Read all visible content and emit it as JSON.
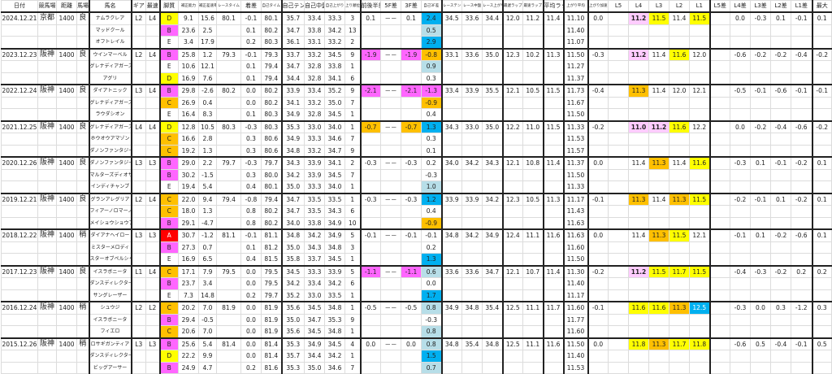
{
  "palette": {
    "Y": "#ffff00",
    "O": "#ffc000",
    "M": "#ff66ff",
    "P": "#ffccff",
    "B": "#00b0f0",
    "L": "#b7dee8",
    "R": "#ff0000"
  },
  "style_colors": {
    "A": "R",
    "B": "M",
    "C": "O",
    "D": "Y",
    "E": ""
  },
  "headers": [
    "日付",
    "競馬場",
    "距離",
    "馬場",
    "馬名",
    "ギア",
    "最速",
    "脚質",
    "補正能力",
    "補正差速率",
    "レースタイム",
    "着差",
    "自己タイム",
    "自己テン",
    "自己中盤",
    "自己上がり",
    "上り順位",
    "前後半差",
    "5F差",
    "3F差",
    "自己3F差",
    "レーステン",
    "レース中盤",
    "レース上がり",
    "最遅ラップ",
    "最速ラップ",
    "平均ラップ",
    "上がり平均",
    "上がり加速",
    "L5",
    "L4",
    "L3",
    "L2",
    "L1",
    "L5差",
    "L4差",
    "L3差",
    "L2差",
    "L1差",
    "最大"
  ],
  "races": [
    {
      "date": "2024.12.21",
      "course": "京都",
      "distance": "1400",
      "going": "良",
      "gear": "L2",
      "fastest": "L4",
      "race_time": "80.1",
      "fb_diff": "0.1",
      "fb_color": "",
      "diff5f": "－－",
      "diff3f": "0.1",
      "race_ten": "34.5",
      "race_mid": "33.6",
      "race_agari": "34.4",
      "slowest_lap": "12.0",
      "fastest_lap": "11.2",
      "avg_lap": "11.4",
      "agari_accel": "0.0",
      "laps": [
        "",
        "11.2",
        "11.5",
        "11.4",
        "11.5"
      ],
      "lap_colors": [
        "",
        "P",
        "Y",
        "",
        "Y"
      ],
      "lap_diffs": [
        "",
        "0.0",
        "-0.3",
        "0.1",
        "-0.1"
      ],
      "max": "0.1",
      "horses": [
        {
          "name": "ナムラクレア",
          "style": "D",
          "adj1": "9.1",
          "adj2": "15.6",
          "margin": "-0.1",
          "time": "80.1",
          "ten": "35.7",
          "mid": "33.4",
          "agari": "33.3",
          "rank": "3",
          "self3f": "2.4",
          "self3f_color": "B",
          "agari_avg": "11.10"
        },
        {
          "name": "マッドクール",
          "style": "B",
          "adj1": "23.6",
          "adj2": "2.5",
          "margin": "0.1",
          "time": "80.2",
          "ten": "34.7",
          "mid": "33.8",
          "agari": "34.2",
          "rank": "13",
          "self3f": "0.5",
          "self3f_color": "L",
          "agari_avg": "11.40"
        },
        {
          "name": "オフトレイル",
          "style": "E",
          "adj1": "3.4",
          "adj2": "17.9",
          "margin": "0.2",
          "time": "80.3",
          "ten": "36.1",
          "mid": "33.1",
          "agari": "33.2",
          "rank": "2",
          "self3f": "2.9",
          "self3f_color": "B",
          "agari_avg": "11.07"
        }
      ]
    },
    {
      "date": "2023.12.23",
      "course": "阪神",
      "distance": "1400",
      "going": "良",
      "gear": "L2",
      "fastest": "L4",
      "race_time": "79.3",
      "fb_diff": "-1.9",
      "fb_color": "M",
      "diff5f": "－－",
      "diff3f": "-1.9",
      "race_ten": "33.1",
      "race_mid": "33.6",
      "race_agari": "35.0",
      "slowest_lap": "12.3",
      "fastest_lap": "10.2",
      "avg_lap": "11.3",
      "agari_accel": "-0.3",
      "laps": [
        "",
        "11.2",
        "11.4",
        "11.6",
        "12.0"
      ],
      "lap_colors": [
        "",
        "P",
        "",
        "Y",
        ""
      ],
      "lap_diffs": [
        "",
        "-0.6",
        "-0.2",
        "-0.2",
        "-0.4"
      ],
      "max": "-0.2",
      "horses": [
        {
          "name": "ウインマーベル",
          "style": "B",
          "adj1": "25.8",
          "adj2": "1.2",
          "margin": "-0.1",
          "time": "79.3",
          "ten": "33.7",
          "mid": "33.2",
          "agari": "34.5",
          "rank": "9",
          "self3f": "-0.8",
          "self3f_color": "O",
          "agari_avg": "11.50"
        },
        {
          "name": "グレナディアガーズ",
          "style": "E",
          "adj1": "10.6",
          "adj2": "12.1",
          "margin": "0.1",
          "time": "79.4",
          "ten": "34.7",
          "mid": "32.8",
          "agari": "33.8",
          "rank": "1",
          "self3f": "0.9",
          "self3f_color": "L",
          "agari_avg": "11.27"
        },
        {
          "name": "アグリ",
          "style": "D",
          "adj1": "16.9",
          "adj2": "7.6",
          "margin": "0.1",
          "time": "79.4",
          "ten": "34.4",
          "mid": "32.8",
          "agari": "34.1",
          "rank": "6",
          "self3f": "0.3",
          "self3f_color": "",
          "agari_avg": "11.37"
        }
      ]
    },
    {
      "date": "2022.12.24",
      "course": "阪神",
      "distance": "1400",
      "going": "良",
      "gear": "L3",
      "fastest": "L4",
      "race_time": "80.2",
      "fb_diff": "-2.1",
      "fb_color": "M",
      "diff5f": "－－",
      "diff3f": "-2.1",
      "race_ten": "33.4",
      "race_mid": "33.9",
      "race_agari": "35.5",
      "slowest_lap": "12.1",
      "fastest_lap": "10.5",
      "avg_lap": "11.5",
      "agari_accel": "-0.4",
      "laps": [
        "",
        "11.3",
        "11.4",
        "12.0",
        "12.1"
      ],
      "lap_colors": [
        "",
        "O",
        "",
        "",
        ""
      ],
      "lap_diffs": [
        "",
        "-0.5",
        "-0.1",
        "-0.6",
        "-0.1"
      ],
      "max": "-0.1",
      "horses": [
        {
          "name": "ダイアトニック",
          "style": "B",
          "adj1": "29.8",
          "adj2": "-2.6",
          "margin": "0.0",
          "time": "80.2",
          "ten": "33.9",
          "mid": "33.4",
          "agari": "35.2",
          "rank": "9",
          "self3f": "-1.3",
          "self3f_color": "M",
          "agari_avg": "11.73"
        },
        {
          "name": "グレナディアガーズ",
          "style": "C",
          "adj1": "26.9",
          "adj2": "0.4",
          "margin": "0.0",
          "time": "80.2",
          "ten": "34.1",
          "mid": "33.2",
          "agari": "35.0",
          "rank": "7",
          "self3f": "-0.9",
          "self3f_color": "O",
          "agari_avg": "11.67"
        },
        {
          "name": "ラウダシオン",
          "style": "E",
          "adj1": "16.4",
          "adj2": "8.3",
          "margin": "0.1",
          "time": "80.3",
          "ten": "34.9",
          "mid": "32.8",
          "agari": "34.5",
          "rank": "1",
          "self3f": "0.4",
          "self3f_color": "",
          "agari_avg": "11.50"
        }
      ]
    },
    {
      "date": "2021.12.25",
      "course": "阪神",
      "distance": "1400",
      "going": "良",
      "gear": "L4",
      "fastest": "L4",
      "race_time": "80.3",
      "fb_diff": "-0.7",
      "fb_color": "O",
      "diff5f": "－－",
      "diff3f": "-0.7",
      "race_ten": "34.3",
      "race_mid": "33.0",
      "race_agari": "35.0",
      "slowest_lap": "12.2",
      "fastest_lap": "11.0",
      "avg_lap": "11.5",
      "agari_accel": "-0.2",
      "laps": [
        "",
        "11.0",
        "11.2",
        "11.6",
        "12.2"
      ],
      "lap_colors": [
        "",
        "P",
        "P",
        "Y",
        ""
      ],
      "lap_diffs": [
        "",
        "0.0",
        "-0.2",
        "-0.4",
        "-0.6"
      ],
      "max": "-0.2",
      "horses": [
        {
          "name": "グレナディアガーズ",
          "style": "D",
          "adj1": "12.8",
          "adj2": "10.5",
          "margin": "-0.3",
          "time": "80.3",
          "ten": "35.3",
          "mid": "33.0",
          "agari": "34.0",
          "rank": "1",
          "self3f": "1.3",
          "self3f_color": "B",
          "agari_avg": "11.33"
        },
        {
          "name": "ホウオウアマゾン",
          "style": "C",
          "adj1": "16.6",
          "adj2": "2.8",
          "margin": "0.3",
          "time": "80.6",
          "ten": "34.9",
          "mid": "33.3",
          "agari": "34.6",
          "rank": "7",
          "self3f": "0.3",
          "self3f_color": "",
          "agari_avg": "11.53"
        },
        {
          "name": "ダノンファンタジー",
          "style": "C",
          "adj1": "19.2",
          "adj2": "1.3",
          "margin": "0.3",
          "time": "80.6",
          "ten": "34.8",
          "mid": "33.2",
          "agari": "34.7",
          "rank": "9",
          "self3f": "0.1",
          "self3f_color": "",
          "agari_avg": "11.57"
        }
      ]
    },
    {
      "date": "2020.12.26",
      "course": "阪神",
      "distance": "1400",
      "going": "良",
      "gear": "L3",
      "fastest": "L3",
      "race_time": "79.7",
      "fb_diff": "-0.3",
      "fb_color": "",
      "diff5f": "－－",
      "diff3f": "-0.3",
      "race_ten": "34.0",
      "race_mid": "34.2",
      "race_agari": "34.3",
      "slowest_lap": "12.1",
      "fastest_lap": "10.8",
      "avg_lap": "11.4",
      "agari_accel": "0.0",
      "laps": [
        "",
        "11.4",
        "11.3",
        "11.4",
        "11.6"
      ],
      "lap_colors": [
        "",
        "",
        "O",
        "",
        "Y"
      ],
      "lap_diffs": [
        "",
        "-0.3",
        "0.1",
        "-0.1",
        "-0.2"
      ],
      "max": "0.1",
      "horses": [
        {
          "name": "ダノンファンタジー",
          "style": "B",
          "adj1": "29.0",
          "adj2": "2.2",
          "margin": "-0.3",
          "time": "79.7",
          "ten": "34.3",
          "mid": "33.9",
          "agari": "34.1",
          "rank": "2",
          "self3f": "0.2",
          "self3f_color": "",
          "agari_avg": "11.37"
        },
        {
          "name": "マルターズディオサ",
          "style": "B",
          "adj1": "30.2",
          "adj2": "-1.5",
          "margin": "0.3",
          "time": "80.0",
          "ten": "34.2",
          "mid": "33.9",
          "agari": "34.5",
          "rank": "7",
          "self3f": "-0.3",
          "self3f_color": "",
          "agari_avg": "11.50"
        },
        {
          "name": "インディチャンプ",
          "style": "E",
          "adj1": "19.4",
          "adj2": "5.4",
          "margin": "0.4",
          "time": "80.1",
          "ten": "35.0",
          "mid": "33.3",
          "agari": "34.0",
          "rank": "1",
          "self3f": "1.0",
          "self3f_color": "L",
          "agari_avg": "11.33"
        }
      ]
    },
    {
      "date": "2019.12.21",
      "course": "阪神",
      "distance": "1400",
      "going": "良",
      "gear": "L2",
      "fastest": "L4",
      "race_time": "79.4",
      "fb_diff": "-0.3",
      "fb_color": "",
      "diff5f": "－－",
      "diff3f": "-0.3",
      "race_ten": "33.9",
      "race_mid": "33.9",
      "race_agari": "34.2",
      "slowest_lap": "12.3",
      "fastest_lap": "10.5",
      "avg_lap": "11.3",
      "agari_accel": "-0.1",
      "laps": [
        "",
        "11.3",
        "11.4",
        "11.3",
        "11.5"
      ],
      "lap_colors": [
        "",
        "O",
        "",
        "O",
        "Y"
      ],
      "lap_diffs": [
        "",
        "-0.2",
        "-0.1",
        "0.1",
        "-0.2"
      ],
      "max": "0.1",
      "horses": [
        {
          "name": "グランアレグリア",
          "style": "C",
          "adj1": "22.0",
          "adj2": "9.4",
          "margin": "-0.8",
          "time": "79.4",
          "ten": "34.7",
          "mid": "33.5",
          "agari": "33.5",
          "rank": "1",
          "self3f": "1.2",
          "self3f_color": "B",
          "agari_avg": "11.17"
        },
        {
          "name": "フィアーノロマーノ",
          "style": "C",
          "adj1": "18.0",
          "adj2": "1.3",
          "margin": "0.8",
          "time": "80.2",
          "ten": "34.7",
          "mid": "33.5",
          "agari": "34.3",
          "rank": "6",
          "self3f": "0.4",
          "self3f_color": "",
          "agari_avg": "11.43"
        },
        {
          "name": "メイショウショウブ",
          "style": "B",
          "adj1": "29.1",
          "adj2": "-4.7",
          "margin": "0.8",
          "time": "80.2",
          "ten": "34.0",
          "mid": "33.8",
          "agari": "34.9",
          "rank": "10",
          "self3f": "-0.9",
          "self3f_color": "O",
          "agari_avg": "11.63"
        }
      ]
    },
    {
      "date": "2018.12.22",
      "course": "阪神",
      "distance": "1400",
      "going": "稍",
      "gear": "L3",
      "fastest": "L3",
      "race_time": "81.1",
      "fb_diff": "-0.1",
      "fb_color": "",
      "diff5f": "－－",
      "diff3f": "-0.1",
      "race_ten": "34.8",
      "race_mid": "34.2",
      "race_agari": "34.9",
      "slowest_lap": "12.4",
      "fastest_lap": "11.1",
      "avg_lap": "11.6",
      "agari_accel": "0.0",
      "laps": [
        "",
        "11.4",
        "11.3",
        "11.5",
        "12.1"
      ],
      "lap_colors": [
        "",
        "",
        "O",
        "Y",
        ""
      ],
      "lap_diffs": [
        "",
        "-0.1",
        "0.1",
        "-0.2",
        "-0.6"
      ],
      "max": "0.1",
      "horses": [
        {
          "name": "ダイアナヘイロー",
          "style": "A",
          "adj1": "30.7",
          "adj2": "-1.2",
          "margin": "-0.1",
          "time": "81.1",
          "ten": "34.8",
          "mid": "34.2",
          "agari": "34.9",
          "rank": "5",
          "self3f": "-0.1",
          "self3f_color": "",
          "agari_avg": "11.63"
        },
        {
          "name": "ミスターメロディ",
          "style": "B",
          "adj1": "27.3",
          "adj2": "0.7",
          "margin": "0.1",
          "time": "81.2",
          "ten": "35.0",
          "mid": "34.3",
          "agari": "34.8",
          "rank": "3",
          "self3f": "0.2",
          "self3f_color": "",
          "agari_avg": "11.60"
        },
        {
          "name": "スターオブペルシャ",
          "style": "E",
          "adj1": "16.9",
          "adj2": "6.5",
          "margin": "0.4",
          "time": "81.5",
          "ten": "35.8",
          "mid": "33.7",
          "agari": "34.5",
          "rank": "1",
          "self3f": "1.3",
          "self3f_color": "B",
          "agari_avg": "11.50"
        }
      ]
    },
    {
      "date": "2017.12.23",
      "course": "阪神",
      "distance": "1400",
      "going": "良",
      "gear": "L1",
      "fastest": "L4",
      "race_time": "79.5",
      "fb_diff": "-1.1",
      "fb_color": "M",
      "diff5f": "－－",
      "diff3f": "-1.1",
      "race_ten": "33.6",
      "race_mid": "33.6",
      "race_agari": "34.7",
      "slowest_lap": "12.1",
      "fastest_lap": "10.7",
      "avg_lap": "11.4",
      "agari_accel": "-0.2",
      "laps": [
        "",
        "11.2",
        "11.5",
        "11.7",
        "11.5"
      ],
      "lap_colors": [
        "",
        "P",
        "Y",
        "Y",
        "Y"
      ],
      "lap_diffs": [
        "",
        "-0.4",
        "-0.3",
        "-0.2",
        "0.2"
      ],
      "max": "0.2",
      "horses": [
        {
          "name": "イスラボニータ",
          "style": "C",
          "adj1": "17.1",
          "adj2": "7.9",
          "margin": "0.0",
          "time": "79.5",
          "ten": "34.5",
          "mid": "33.3",
          "agari": "33.9",
          "rank": "5",
          "self3f": "0.6",
          "self3f_color": "L",
          "agari_avg": "11.30"
        },
        {
          "name": "ダンスディレクター",
          "style": "B",
          "adj1": "23.7",
          "adj2": "3.4",
          "margin": "0.0",
          "time": "79.5",
          "ten": "34.2",
          "mid": "33.4",
          "agari": "34.2",
          "rank": "6",
          "self3f": "0.0",
          "self3f_color": "",
          "agari_avg": "11.40"
        },
        {
          "name": "サングレーザー",
          "style": "E",
          "adj1": "7.3",
          "adj2": "14.8",
          "margin": "0.2",
          "time": "79.7",
          "ten": "35.2",
          "mid": "33.0",
          "agari": "33.5",
          "rank": "1",
          "self3f": "1.7",
          "self3f_color": "B",
          "agari_avg": "11.17"
        }
      ]
    },
    {
      "date": "2016.12.24",
      "course": "阪神",
      "distance": "1400",
      "going": "稍",
      "gear": "L2",
      "fastest": "L2",
      "race_time": "81.9",
      "fb_diff": "-0.5",
      "fb_color": "",
      "diff5f": "－－",
      "diff3f": "-0.5",
      "race_ten": "34.9",
      "race_mid": "34.8",
      "race_agari": "35.4",
      "slowest_lap": "12.5",
      "fastest_lap": "11.1",
      "avg_lap": "11.7",
      "agari_accel": "-0.1",
      "laps": [
        "",
        "11.6",
        "11.6",
        "11.3",
        "12.5"
      ],
      "lap_colors": [
        "",
        "Y",
        "Y",
        "O",
        "B"
      ],
      "lap_diffs": [
        "",
        "-0.3",
        "0.0",
        "0.3",
        "-1.2"
      ],
      "max": "0.3",
      "horses": [
        {
          "name": "シュウジ",
          "style": "C",
          "adj1": "20.2",
          "adj2": "7.0",
          "margin": "0.0",
          "time": "81.9",
          "ten": "35.6",
          "mid": "34.5",
          "agari": "34.8",
          "rank": "1",
          "self3f": "0.8",
          "self3f_color": "L",
          "agari_avg": "11.60"
        },
        {
          "name": "イスラボニータ",
          "style": "B",
          "adj1": "29.4",
          "adj2": "-0.5",
          "margin": "0.0",
          "time": "81.9",
          "ten": "35.0",
          "mid": "34.7",
          "agari": "35.3",
          "rank": "9",
          "self3f": "-0.3",
          "self3f_color": "",
          "agari_avg": "11.77"
        },
        {
          "name": "フィエロ",
          "style": "C",
          "adj1": "20.6",
          "adj2": "7.0",
          "margin": "0.0",
          "time": "81.9",
          "ten": "35.6",
          "mid": "34.5",
          "agari": "34.8",
          "rank": "1",
          "self3f": "0.8",
          "self3f_color": "L",
          "agari_avg": "11.60"
        }
      ]
    },
    {
      "date": "2015.12.26",
      "course": "阪神",
      "distance": "1400",
      "going": "稍",
      "gear": "L3",
      "fastest": "L3",
      "race_time": "81.4",
      "fb_diff": "0.0",
      "fb_color": "",
      "diff5f": "－－",
      "diff3f": "0.0",
      "race_ten": "34.8",
      "race_mid": "35.4",
      "race_agari": "34.8",
      "slowest_lap": "12.5",
      "fastest_lap": "11.1",
      "avg_lap": "11.6",
      "agari_accel": "0.0",
      "laps": [
        "",
        "11.8",
        "11.3",
        "11.7",
        "11.8"
      ],
      "lap_colors": [
        "",
        "Y",
        "O",
        "Y",
        "Y"
      ],
      "lap_diffs": [
        "",
        "-0.6",
        "0.5",
        "-0.4",
        "-0.1"
      ],
      "max": "0.5",
      "horses": [
        {
          "name": "ロサギガンティア",
          "style": "B",
          "adj1": "25.6",
          "adj2": "5.4",
          "margin": "0.0",
          "time": "81.4",
          "ten": "35.3",
          "mid": "34.9",
          "agari": "34.5",
          "rank": "4",
          "self3f": "0.8",
          "self3f_color": "L",
          "agari_avg": "11.50"
        },
        {
          "name": "ダンスディレクター",
          "style": "D",
          "adj1": "22.2",
          "adj2": "9.9",
          "margin": "0.0",
          "time": "81.4",
          "ten": "35.7",
          "mid": "34.4",
          "agari": "34.2",
          "rank": "1",
          "self3f": "1.5",
          "self3f_color": "B",
          "agari_avg": "11.40"
        },
        {
          "name": "ビッグアーサー",
          "style": "B",
          "adj1": "24.9",
          "adj2": "4.7",
          "margin": "0.2",
          "time": "81.6",
          "ten": "35.3",
          "mid": "35.0",
          "agari": "34.6",
          "rank": "7",
          "self3f": "0.7",
          "self3f_color": "L",
          "agari_avg": "11.53"
        }
      ]
    }
  ]
}
